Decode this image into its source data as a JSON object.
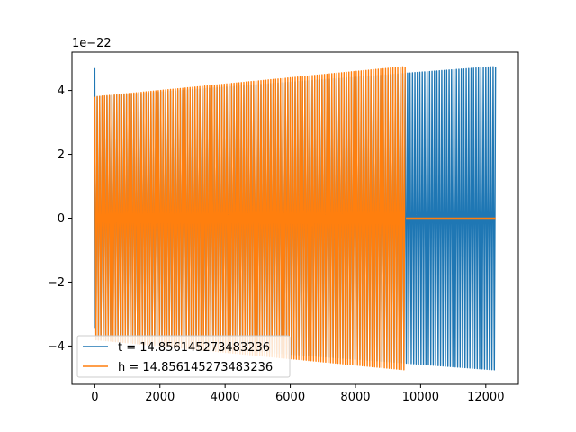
{
  "chart_data": {
    "type": "line",
    "title": "",
    "xlabel": "",
    "ylabel": "",
    "y_offset_label": "1e−22",
    "y_scale_exponent": -22,
    "xlim": [
      -700,
      13000
    ],
    "ylim": [
      -5.2e-22,
      5.2e-22
    ],
    "x_ticks": [
      0,
      2000,
      4000,
      6000,
      8000,
      10000,
      12000
    ],
    "x_tick_labels": [
      "0",
      "2000",
      "4000",
      "6000",
      "8000",
      "10000",
      "12000"
    ],
    "y_ticks": [
      -4e-22,
      -2e-22,
      0,
      2e-22,
      4e-22
    ],
    "y_tick_labels": [
      "−4",
      "−2",
      "0",
      "2",
      "4"
    ],
    "grid": false,
    "legend_position": "lower left",
    "series": [
      {
        "name": "t = 14.856145273483236",
        "color": "#1f77b4",
        "x_start": 0,
        "x_end": 12300,
        "initial_spike": 4.7e-22,
        "envelope_start": 3.8e-22,
        "envelope_end": 4.75e-22,
        "oscillation_period": 75
      },
      {
        "name": "h = 14.856145273483236",
        "color": "#ff7f0e",
        "x_start": 0,
        "x_end": 9550,
        "envelope_start": 3.8e-22,
        "envelope_end": 4.75e-22,
        "oscillation_period": 75,
        "tail_value": 0,
        "tail_x_end": 12300
      }
    ]
  }
}
